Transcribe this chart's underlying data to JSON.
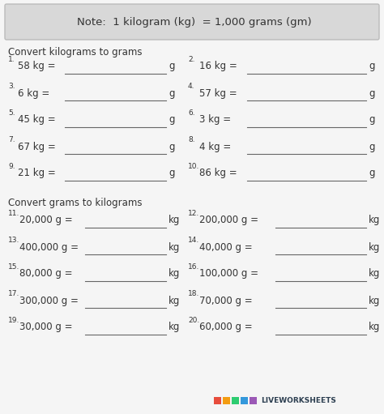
{
  "bg_color": "#f5f5f5",
  "note_box_color": "#d8d8d8",
  "note_box_edge": "#bbbbbb",
  "note_text": "Note:  1 kilogram (kg)  = 1,000 grams (gm)",
  "section1_title": "Convert kilograms to grams",
  "section2_title": "Convert grams to kilograms",
  "col1_questions": [
    {
      "num": "1.",
      "q": "58 kg =",
      "unit": "g"
    },
    {
      "num": "3.",
      "q": "6 kg =",
      "unit": "g"
    },
    {
      "num": "5.",
      "q": "45 kg =",
      "unit": "g"
    },
    {
      "num": "7.",
      "q": "67 kg =",
      "unit": "g"
    },
    {
      "num": "9.",
      "q": "21 kg =",
      "unit": "g"
    }
  ],
  "col2_questions": [
    {
      "num": "2.",
      "q": "16 kg =",
      "unit": "g"
    },
    {
      "num": "4.",
      "q": "57 kg =",
      "unit": "g"
    },
    {
      "num": "6.",
      "q": "3 kg =",
      "unit": "g"
    },
    {
      "num": "8.",
      "q": "4 kg =",
      "unit": "g"
    },
    {
      "num": "10.",
      "q": "86 kg =",
      "unit": "g"
    }
  ],
  "col3_questions": [
    {
      "num": "11.",
      "q": "20,000 g =",
      "unit": "kg"
    },
    {
      "num": "13.",
      "q": "400,000 g =",
      "unit": "kg"
    },
    {
      "num": "15.",
      "q": "80,000 g =",
      "unit": "kg"
    },
    {
      "num": "17.",
      "q": "300,000 g =",
      "unit": "kg"
    },
    {
      "num": "19.",
      "q": "30,000 g =",
      "unit": "kg"
    }
  ],
  "col4_questions": [
    {
      "num": "12.",
      "q": "200,000 g =",
      "unit": "kg"
    },
    {
      "num": "14.",
      "q": "40,000 g =",
      "unit": "kg"
    },
    {
      "num": "16.",
      "q": "100,000 g =",
      "unit": "kg"
    },
    {
      "num": "18.",
      "q": "70,000 g =",
      "unit": "kg"
    },
    {
      "num": "20.",
      "q": "60,000 g =",
      "unit": "kg"
    }
  ],
  "text_color": "#333333",
  "line_color": "#666666",
  "font_size_note": 9.5,
  "font_size_section": 8.5,
  "font_size_q": 8.5,
  "font_size_num": 6.5,
  "logo_colors": [
    "#e74c3c",
    "#f39c12",
    "#2ecc71",
    "#3498db",
    "#9b59b6"
  ],
  "logo_text": "LIVEWORKSHEETS",
  "logo_text_color": "#2c3e50"
}
